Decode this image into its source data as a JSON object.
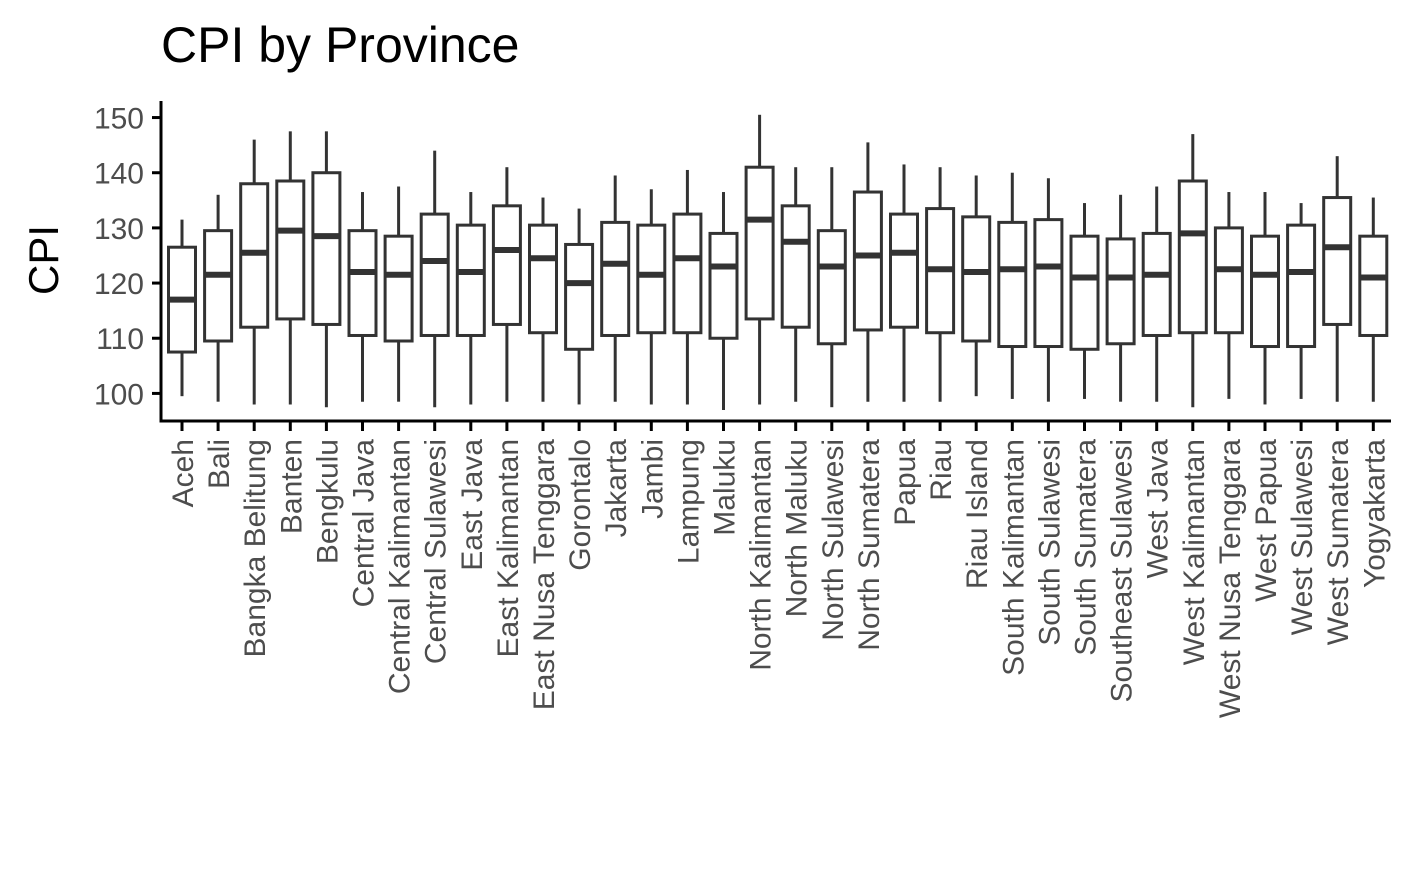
{
  "chart_data": {
    "type": "box",
    "title": "CPI by Province",
    "xlabel": "",
    "ylabel": "CPI",
    "ylim": [
      95,
      153
    ],
    "yticks": [
      100,
      110,
      120,
      130,
      140,
      150
    ],
    "grid": false,
    "categories": [
      "Aceh",
      "Bali",
      "Bangka Belitung",
      "Banten",
      "Bengkulu",
      "Central Java",
      "Central Kalimantan",
      "Central Sulawesi",
      "East Java",
      "East Kalimantan",
      "East Nusa Tenggara",
      "Gorontalo",
      "Jakarta",
      "Jambi",
      "Lampung",
      "Maluku",
      "North Kalimantan",
      "North Maluku",
      "North Sulawesi",
      "North Sumatera",
      "Papua",
      "Riau",
      "Riau Island",
      "South Kalimantan",
      "South Sulawesi",
      "South Sumatera",
      "Southeast Sulawesi",
      "West Java",
      "West Kalimantan",
      "West Nusa Tenggara",
      "West Papua",
      "West Sulawesi",
      "West Sumatera",
      "Yogyakarta"
    ],
    "boxes": [
      {
        "min": 99.5,
        "q1": 107.5,
        "median": 117,
        "q3": 126.5,
        "max": 131.5
      },
      {
        "min": 98.5,
        "q1": 109.5,
        "median": 121.5,
        "q3": 129.5,
        "max": 136
      },
      {
        "min": 98,
        "q1": 112,
        "median": 125.5,
        "q3": 138,
        "max": 146
      },
      {
        "min": 98,
        "q1": 113.5,
        "median": 129.5,
        "q3": 138.5,
        "max": 147.5
      },
      {
        "min": 97.5,
        "q1": 112.5,
        "median": 128.5,
        "q3": 140,
        "max": 147.5
      },
      {
        "min": 98.5,
        "q1": 110.5,
        "median": 122,
        "q3": 129.5,
        "max": 136.5
      },
      {
        "min": 98.5,
        "q1": 109.5,
        "median": 121.5,
        "q3": 128.5,
        "max": 137.5
      },
      {
        "min": 97.5,
        "q1": 110.5,
        "median": 124,
        "q3": 132.5,
        "max": 144
      },
      {
        "min": 98,
        "q1": 110.5,
        "median": 122,
        "q3": 130.5,
        "max": 136.5
      },
      {
        "min": 98.5,
        "q1": 112.5,
        "median": 126,
        "q3": 134,
        "max": 141
      },
      {
        "min": 98.5,
        "q1": 111,
        "median": 124.5,
        "q3": 130.5,
        "max": 135.5
      },
      {
        "min": 98,
        "q1": 108,
        "median": 120,
        "q3": 127,
        "max": 133.5
      },
      {
        "min": 98.5,
        "q1": 110.5,
        "median": 123.5,
        "q3": 131,
        "max": 139.5
      },
      {
        "min": 98,
        "q1": 111,
        "median": 121.5,
        "q3": 130.5,
        "max": 137
      },
      {
        "min": 98,
        "q1": 111,
        "median": 124.5,
        "q3": 132.5,
        "max": 140.5
      },
      {
        "min": 97,
        "q1": 110,
        "median": 123,
        "q3": 129,
        "max": 136.5
      },
      {
        "min": 98,
        "q1": 113.5,
        "median": 131.5,
        "q3": 141,
        "max": 150.5
      },
      {
        "min": 98.5,
        "q1": 112,
        "median": 127.5,
        "q3": 134,
        "max": 141
      },
      {
        "min": 97.5,
        "q1": 109,
        "median": 123,
        "q3": 129.5,
        "max": 141
      },
      {
        "min": 98.5,
        "q1": 111.5,
        "median": 125,
        "q3": 136.5,
        "max": 145.5
      },
      {
        "min": 98.5,
        "q1": 112,
        "median": 125.5,
        "q3": 132.5,
        "max": 141.5
      },
      {
        "min": 98.5,
        "q1": 111,
        "median": 122.5,
        "q3": 133.5,
        "max": 141
      },
      {
        "min": 99.5,
        "q1": 109.5,
        "median": 122,
        "q3": 132,
        "max": 139.5
      },
      {
        "min": 99,
        "q1": 108.5,
        "median": 122.5,
        "q3": 131,
        "max": 140
      },
      {
        "min": 98.5,
        "q1": 108.5,
        "median": 123,
        "q3": 131.5,
        "max": 139
      },
      {
        "min": 99,
        "q1": 108,
        "median": 121,
        "q3": 128.5,
        "max": 134.5
      },
      {
        "min": 98.5,
        "q1": 109,
        "median": 121,
        "q3": 128,
        "max": 136
      },
      {
        "min": 98.5,
        "q1": 110.5,
        "median": 121.5,
        "q3": 129,
        "max": 137.5
      },
      {
        "min": 97.5,
        "q1": 111,
        "median": 129,
        "q3": 138.5,
        "max": 147
      },
      {
        "min": 99,
        "q1": 111,
        "median": 122.5,
        "q3": 130,
        "max": 136.5
      },
      {
        "min": 98,
        "q1": 108.5,
        "median": 121.5,
        "q3": 128.5,
        "max": 136.5
      },
      {
        "min": 99,
        "q1": 108.5,
        "median": 122,
        "q3": 130.5,
        "max": 134.5
      },
      {
        "min": 98.5,
        "q1": 112.5,
        "median": 126.5,
        "q3": 135.5,
        "max": 143
      },
      {
        "min": 98.5,
        "q1": 110.5,
        "median": 121,
        "q3": 128.5,
        "max": 135.5
      }
    ],
    "colors": {
      "box_stroke": "#333333",
      "box_fill": "#ffffff",
      "axis": "#000000",
      "tick_label": "#4d4d4d",
      "title": "#000000"
    }
  }
}
